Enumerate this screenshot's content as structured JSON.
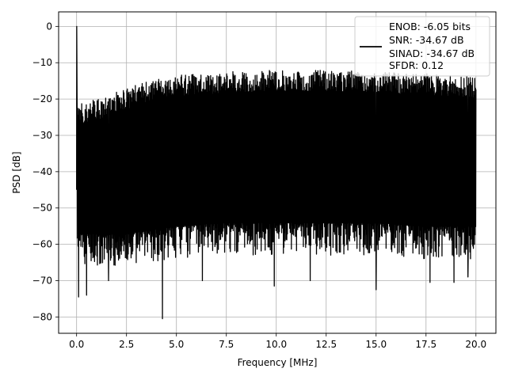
{
  "chart_data": {
    "type": "line",
    "xlabel": "Frequency [MHz]",
    "ylabel": "PSD [dB]",
    "xlim": [
      -0.9,
      21.0
    ],
    "ylim": [
      -84.5,
      4.0
    ],
    "x_ticks": [
      0.0,
      2.5,
      5.0,
      7.5,
      10.0,
      12.5,
      15.0,
      17.5,
      20.0
    ],
    "x_tick_labels": [
      "0.0",
      "2.5",
      "5.0",
      "7.5",
      "10.0",
      "12.5",
      "15.0",
      "17.5",
      "20.0"
    ],
    "y_ticks": [
      0,
      -10,
      -20,
      -30,
      -40,
      -50,
      -60,
      -70,
      -80
    ],
    "y_tick_labels": [
      "0",
      "−10",
      "−20",
      "−30",
      "−40",
      "−50",
      "−60",
      "−70",
      "−80"
    ],
    "grid": true,
    "legend_position": "top-right",
    "legend_lines": [
      "ENOB: -6.05 bits",
      "SNR: -34.67 dB",
      "SINAD: -34.67 dB",
      "SFDR: 0.12"
    ],
    "line_color": "#000000",
    "series": [
      {
        "x_range_mhz": [
          0.0,
          20.0
        ],
        "peak_envelope": {
          "x": [
            0.0,
            0.5,
            1.0,
            2.0,
            3.0,
            4.0,
            5.0,
            7.5,
            10.0,
            12.5,
            15.0,
            17.5,
            20.0
          ],
          "y": [
            -21,
            -21,
            -20,
            -18,
            -16,
            -14.5,
            -13.5,
            -12.5,
            -12,
            -12,
            -12.5,
            -13,
            -14
          ]
        },
        "floor_envelope": {
          "x": [
            0.0,
            2.5,
            5.0,
            7.5,
            10.0,
            12.5,
            15.0,
            17.5,
            20.0
          ],
          "y": [
            -57,
            -57,
            -55,
            -54,
            -54,
            -54,
            -54,
            -55,
            -55
          ]
        },
        "peaks": [
          {
            "x": 0.0,
            "y": 0
          },
          {
            "x": 4.3,
            "y": -80.5
          },
          {
            "x": 0.1,
            "y": -74.5
          },
          {
            "x": 0.5,
            "y": -74
          },
          {
            "x": 1.6,
            "y": -70
          },
          {
            "x": 6.3,
            "y": -70
          },
          {
            "x": 9.9,
            "y": -71.5
          },
          {
            "x": 11.7,
            "y": -70
          },
          {
            "x": 15.0,
            "y": -72.5
          },
          {
            "x": 17.7,
            "y": -70.5
          },
          {
            "x": 18.9,
            "y": -70.5
          },
          {
            "x": 19.6,
            "y": -69
          }
        ]
      }
    ]
  }
}
